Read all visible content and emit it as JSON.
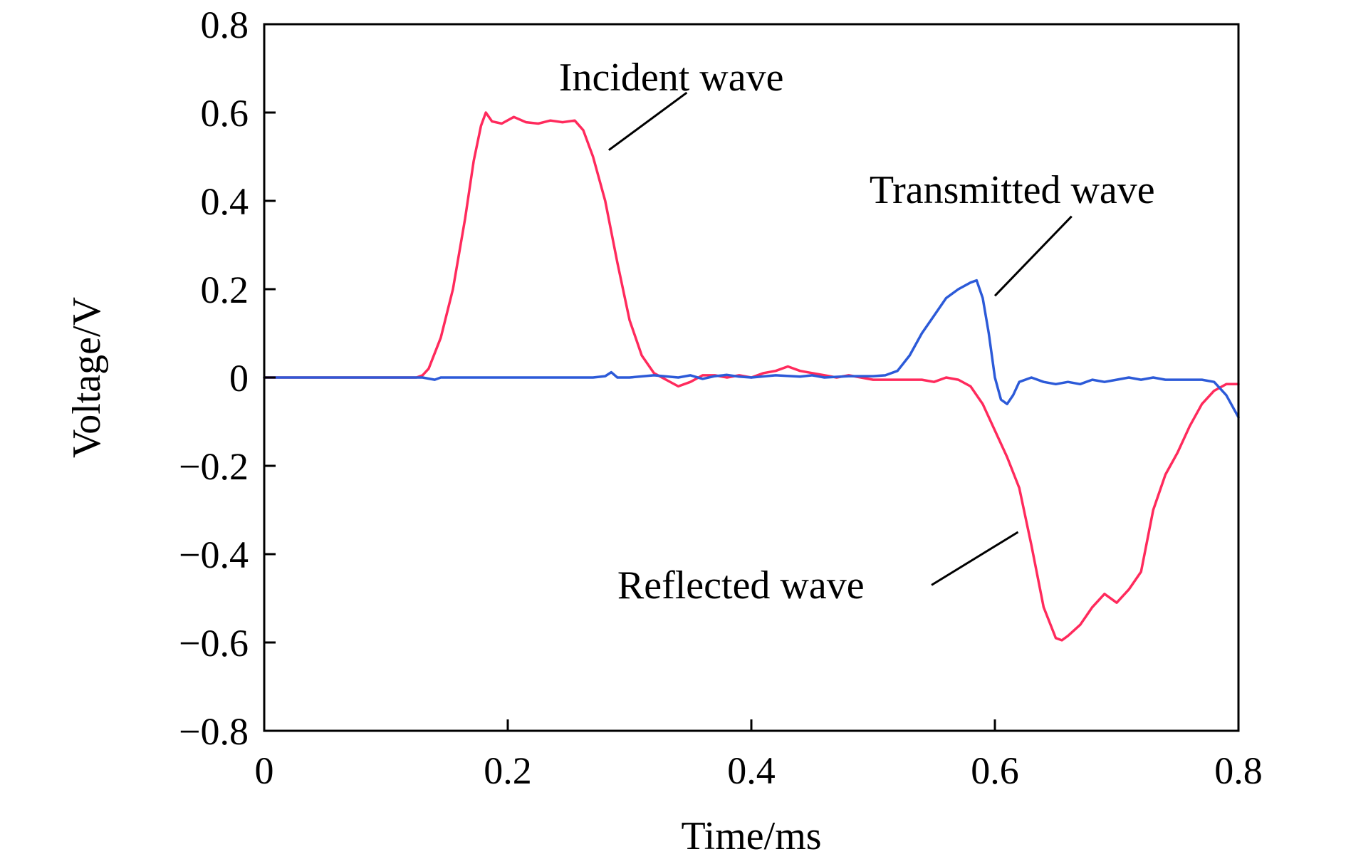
{
  "chart_data": {
    "type": "line",
    "xlabel": "Time/ms",
    "ylabel": "Voltage/V",
    "xlim": [
      0,
      0.8
    ],
    "ylim": [
      -0.8,
      0.8
    ],
    "x_ticks": [
      0,
      0.2,
      0.4,
      0.6,
      0.8
    ],
    "x_tick_labels": [
      "0",
      "0.2",
      "0.4",
      "0.6",
      "0.8"
    ],
    "y_ticks": [
      0.8,
      0.6,
      0.4,
      0.2,
      0,
      -0.2,
      -0.4,
      -0.6,
      -0.8
    ],
    "y_tick_labels": [
      "0.8",
      "0.6",
      "0.4",
      "0.2",
      "0",
      "−0.2",
      "−0.4",
      "−0.6",
      "−0.8"
    ],
    "grid": false,
    "series": [
      {
        "color": "#ff2a5c",
        "points": [
          [
            0,
            0.0
          ],
          [
            0.05,
            0.0
          ],
          [
            0.1,
            0.0
          ],
          [
            0.125,
            0.0
          ],
          [
            0.13,
            0.005
          ],
          [
            0.135,
            0.02
          ],
          [
            0.145,
            0.09
          ],
          [
            0.155,
            0.2
          ],
          [
            0.165,
            0.36
          ],
          [
            0.172,
            0.49
          ],
          [
            0.178,
            0.57
          ],
          [
            0.182,
            0.6
          ],
          [
            0.187,
            0.58
          ],
          [
            0.195,
            0.575
          ],
          [
            0.205,
            0.59
          ],
          [
            0.215,
            0.578
          ],
          [
            0.225,
            0.575
          ],
          [
            0.235,
            0.582
          ],
          [
            0.245,
            0.578
          ],
          [
            0.255,
            0.582
          ],
          [
            0.262,
            0.56
          ],
          [
            0.27,
            0.5
          ],
          [
            0.28,
            0.4
          ],
          [
            0.29,
            0.26
          ],
          [
            0.3,
            0.13
          ],
          [
            0.31,
            0.05
          ],
          [
            0.32,
            0.01
          ],
          [
            0.33,
            -0.005
          ],
          [
            0.34,
            -0.02
          ],
          [
            0.35,
            -0.01
          ],
          [
            0.36,
            0.005
          ],
          [
            0.37,
            0.005
          ],
          [
            0.38,
            0.0
          ],
          [
            0.39,
            0.005
          ],
          [
            0.4,
            0.0
          ],
          [
            0.41,
            0.01
          ],
          [
            0.42,
            0.015
          ],
          [
            0.43,
            0.025
          ],
          [
            0.44,
            0.015
          ],
          [
            0.45,
            0.01
          ],
          [
            0.46,
            0.005
          ],
          [
            0.47,
            0.0
          ],
          [
            0.48,
            0.005
          ],
          [
            0.49,
            0.0
          ],
          [
            0.5,
            -0.005
          ],
          [
            0.52,
            -0.005
          ],
          [
            0.54,
            -0.005
          ],
          [
            0.55,
            -0.01
          ],
          [
            0.56,
            0.0
          ],
          [
            0.57,
            -0.005
          ],
          [
            0.58,
            -0.02
          ],
          [
            0.59,
            -0.06
          ],
          [
            0.6,
            -0.12
          ],
          [
            0.61,
            -0.18
          ],
          [
            0.62,
            -0.25
          ],
          [
            0.63,
            -0.38
          ],
          [
            0.64,
            -0.52
          ],
          [
            0.65,
            -0.59
          ],
          [
            0.655,
            -0.595
          ],
          [
            0.66,
            -0.585
          ],
          [
            0.67,
            -0.56
          ],
          [
            0.68,
            -0.52
          ],
          [
            0.69,
            -0.49
          ],
          [
            0.7,
            -0.51
          ],
          [
            0.71,
            -0.48
          ],
          [
            0.72,
            -0.44
          ],
          [
            0.73,
            -0.3
          ],
          [
            0.74,
            -0.22
          ],
          [
            0.75,
            -0.17
          ],
          [
            0.76,
            -0.11
          ],
          [
            0.77,
            -0.06
          ],
          [
            0.78,
            -0.03
          ],
          [
            0.79,
            -0.015
          ],
          [
            0.8,
            -0.015
          ]
        ]
      },
      {
        "color": "#2c5ad8",
        "points": [
          [
            0,
            0.0
          ],
          [
            0.1,
            0.0
          ],
          [
            0.13,
            0.0
          ],
          [
            0.14,
            -0.005
          ],
          [
            0.145,
            0.0
          ],
          [
            0.16,
            0.0
          ],
          [
            0.2,
            0.0
          ],
          [
            0.25,
            0.0
          ],
          [
            0.27,
            0.0
          ],
          [
            0.28,
            0.003
          ],
          [
            0.285,
            0.012
          ],
          [
            0.29,
            0.0
          ],
          [
            0.3,
            0.0
          ],
          [
            0.32,
            0.005
          ],
          [
            0.34,
            0.0
          ],
          [
            0.35,
            0.005
          ],
          [
            0.36,
            -0.003
          ],
          [
            0.37,
            0.003
          ],
          [
            0.38,
            0.006
          ],
          [
            0.39,
            0.002
          ],
          [
            0.4,
            0.0
          ],
          [
            0.42,
            0.005
          ],
          [
            0.44,
            0.002
          ],
          [
            0.45,
            0.005
          ],
          [
            0.46,
            0.0
          ],
          [
            0.48,
            0.003
          ],
          [
            0.5,
            0.003
          ],
          [
            0.51,
            0.005
          ],
          [
            0.52,
            0.015
          ],
          [
            0.53,
            0.05
          ],
          [
            0.54,
            0.1
          ],
          [
            0.55,
            0.14
          ],
          [
            0.56,
            0.18
          ],
          [
            0.57,
            0.2
          ],
          [
            0.58,
            0.215
          ],
          [
            0.585,
            0.22
          ],
          [
            0.59,
            0.18
          ],
          [
            0.595,
            0.1
          ],
          [
            0.6,
            0.0
          ],
          [
            0.605,
            -0.05
          ],
          [
            0.61,
            -0.06
          ],
          [
            0.615,
            -0.04
          ],
          [
            0.62,
            -0.01
          ],
          [
            0.63,
            0.0
          ],
          [
            0.64,
            -0.01
          ],
          [
            0.65,
            -0.015
          ],
          [
            0.66,
            -0.01
          ],
          [
            0.67,
            -0.015
          ],
          [
            0.68,
            -0.005
          ],
          [
            0.69,
            -0.01
          ],
          [
            0.7,
            -0.005
          ],
          [
            0.71,
            0.0
          ],
          [
            0.72,
            -0.005
          ],
          [
            0.73,
            0.0
          ],
          [
            0.74,
            -0.005
          ],
          [
            0.75,
            -0.005
          ],
          [
            0.76,
            -0.005
          ],
          [
            0.77,
            -0.005
          ],
          [
            0.78,
            -0.01
          ],
          [
            0.79,
            -0.04
          ],
          [
            0.8,
            -0.09
          ]
        ]
      }
    ],
    "annotations": [
      {
        "text": "Incident wave",
        "line_from": [
          0.347,
          0.645
        ],
        "line_to": [
          0.283,
          0.515
        ],
        "text_at": [
          0.242,
          0.65
        ]
      },
      {
        "text": "Transmitted wave",
        "line_from": [
          0.663,
          0.365
        ],
        "line_to": [
          0.6,
          0.185
        ],
        "text_at": [
          0.497,
          0.395
        ]
      },
      {
        "text": "Reflected wave",
        "line_from": [
          0.548,
          -0.47
        ],
        "line_to": [
          0.619,
          -0.35
        ],
        "text_at": [
          0.29,
          -0.5
        ]
      }
    ]
  }
}
